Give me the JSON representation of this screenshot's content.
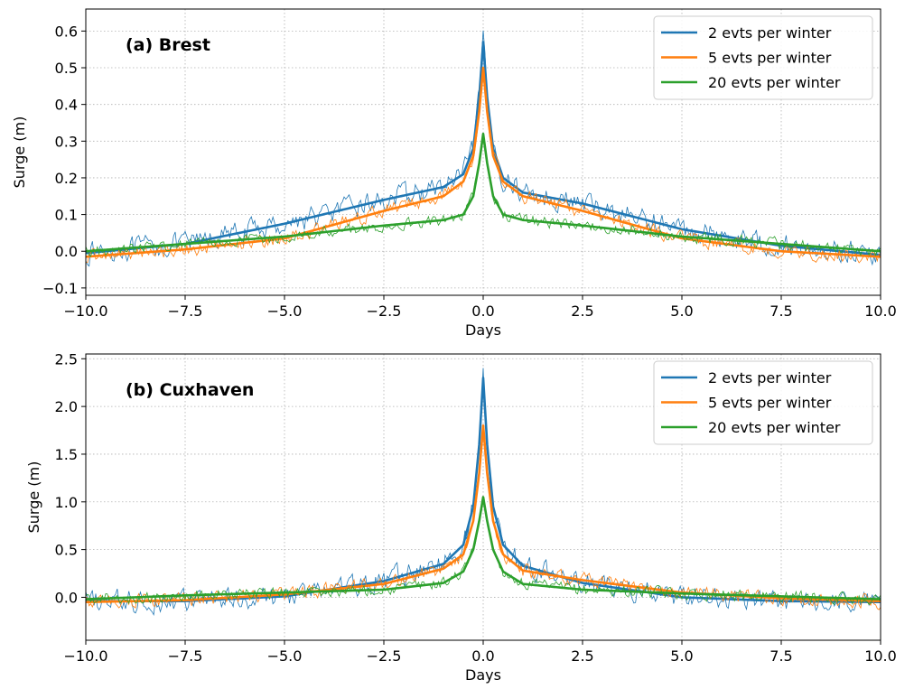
{
  "colors": {
    "blue": "#1f77b4",
    "orange": "#ff7f0e",
    "green": "#2ca02c",
    "grid": "#b0b0b0"
  },
  "chart_data": [
    {
      "type": "line",
      "panel_label": "(a) Brest",
      "xlabel": "Days",
      "ylabel": "Surge (m)",
      "xlim": [
        -10,
        10
      ],
      "ylim": [
        -0.12,
        0.66
      ],
      "xticks": [
        -10,
        -7.5,
        -5,
        -2.5,
        0,
        2.5,
        5,
        7.5,
        10
      ],
      "xtick_labels": [
        "−10.0",
        "−7.5",
        "−5.0",
        "−2.5",
        "0.0",
        "2.5",
        "5.0",
        "7.5",
        "10.0"
      ],
      "yticks": [
        -0.1,
        0,
        0.1,
        0.2,
        0.3,
        0.4,
        0.5,
        0.6
      ],
      "ytick_labels": [
        "−0.1",
        "0.0",
        "0.1",
        "0.2",
        "0.3",
        "0.4",
        "0.5",
        "0.6"
      ],
      "grid": true,
      "legend_position": "top-right",
      "series": [
        {
          "name": "2 evts per winter",
          "color": "blue",
          "x": [
            -10,
            -7.5,
            -5,
            -2.5,
            -1,
            -0.5,
            -0.25,
            -0.1,
            0,
            0.1,
            0.25,
            0.5,
            1,
            2.5,
            5,
            7.5,
            10
          ],
          "y": [
            -0.005,
            0.02,
            0.075,
            0.14,
            0.175,
            0.21,
            0.28,
            0.42,
            0.57,
            0.42,
            0.28,
            0.2,
            0.16,
            0.13,
            0.06,
            0.015,
            -0.01
          ]
        },
        {
          "name": "5 evts per winter",
          "color": "orange",
          "x": [
            -10,
            -7.5,
            -5,
            -2.5,
            -1,
            -0.5,
            -0.25,
            -0.1,
            0,
            0.1,
            0.25,
            0.5,
            1,
            2.5,
            5,
            7.5,
            10
          ],
          "y": [
            -0.015,
            0.005,
            0.035,
            0.11,
            0.15,
            0.19,
            0.26,
            0.38,
            0.5,
            0.38,
            0.26,
            0.19,
            0.15,
            0.11,
            0.035,
            0.0,
            -0.015
          ]
        },
        {
          "name": "20 evts per winter",
          "color": "green",
          "x": [
            -10,
            -7.5,
            -5,
            -2.5,
            -1,
            -0.5,
            -0.25,
            -0.1,
            0,
            0.1,
            0.25,
            0.5,
            1,
            2.5,
            5,
            7.5,
            10
          ],
          "y": [
            0.0,
            0.02,
            0.04,
            0.07,
            0.085,
            0.1,
            0.15,
            0.24,
            0.32,
            0.24,
            0.15,
            0.1,
            0.085,
            0.07,
            0.04,
            0.02,
            0.0
          ]
        }
      ]
    },
    {
      "type": "line",
      "panel_label": "(b) Cuxhaven",
      "xlabel": "Days",
      "ylabel": "Surge (m)",
      "xlim": [
        -10,
        10
      ],
      "ylim": [
        -0.45,
        2.55
      ],
      "xticks": [
        -10,
        -7.5,
        -5,
        -2.5,
        0,
        2.5,
        5,
        7.5,
        10
      ],
      "xtick_labels": [
        "−10.0",
        "−7.5",
        "−5.0",
        "−2.5",
        "0.0",
        "2.5",
        "5.0",
        "7.5",
        "10.0"
      ],
      "yticks": [
        0,
        0.5,
        1,
        1.5,
        2,
        2.5
      ],
      "ytick_labels": [
        "0.0",
        "0.5",
        "1.0",
        "1.5",
        "2.0",
        "2.5"
      ],
      "grid": true,
      "legend_position": "top-right",
      "series": [
        {
          "name": "2 evts per winter",
          "color": "blue",
          "x": [
            -10,
            -7.5,
            -5,
            -2.5,
            -1,
            -0.5,
            -0.25,
            -0.1,
            0,
            0.1,
            0.25,
            0.5,
            1,
            2.5,
            5,
            7.5,
            10
          ],
          "y": [
            -0.04,
            -0.04,
            0.01,
            0.17,
            0.35,
            0.55,
            0.95,
            1.6,
            2.3,
            1.6,
            0.95,
            0.55,
            0.33,
            0.15,
            0.0,
            -0.04,
            -0.05
          ]
        },
        {
          "name": "5 evts per winter",
          "color": "orange",
          "x": [
            -10,
            -7.5,
            -5,
            -2.5,
            -1,
            -0.5,
            -0.25,
            -0.1,
            0,
            0.1,
            0.25,
            0.5,
            1,
            2.5,
            5,
            7.5,
            10
          ],
          "y": [
            -0.05,
            -0.03,
            0.03,
            0.14,
            0.3,
            0.45,
            0.8,
            1.3,
            1.8,
            1.3,
            0.8,
            0.45,
            0.28,
            0.18,
            0.05,
            -0.01,
            -0.04
          ]
        },
        {
          "name": "20 evts per winter",
          "color": "green",
          "x": [
            -10,
            -7.5,
            -5,
            -2.5,
            -1,
            -0.5,
            -0.25,
            -0.1,
            0,
            0.1,
            0.25,
            0.5,
            1,
            2.5,
            5,
            7.5,
            10
          ],
          "y": [
            -0.02,
            0.02,
            0.05,
            0.08,
            0.15,
            0.27,
            0.5,
            0.8,
            1.05,
            0.8,
            0.5,
            0.27,
            0.14,
            0.08,
            0.04,
            0.01,
            -0.02
          ]
        }
      ]
    }
  ]
}
